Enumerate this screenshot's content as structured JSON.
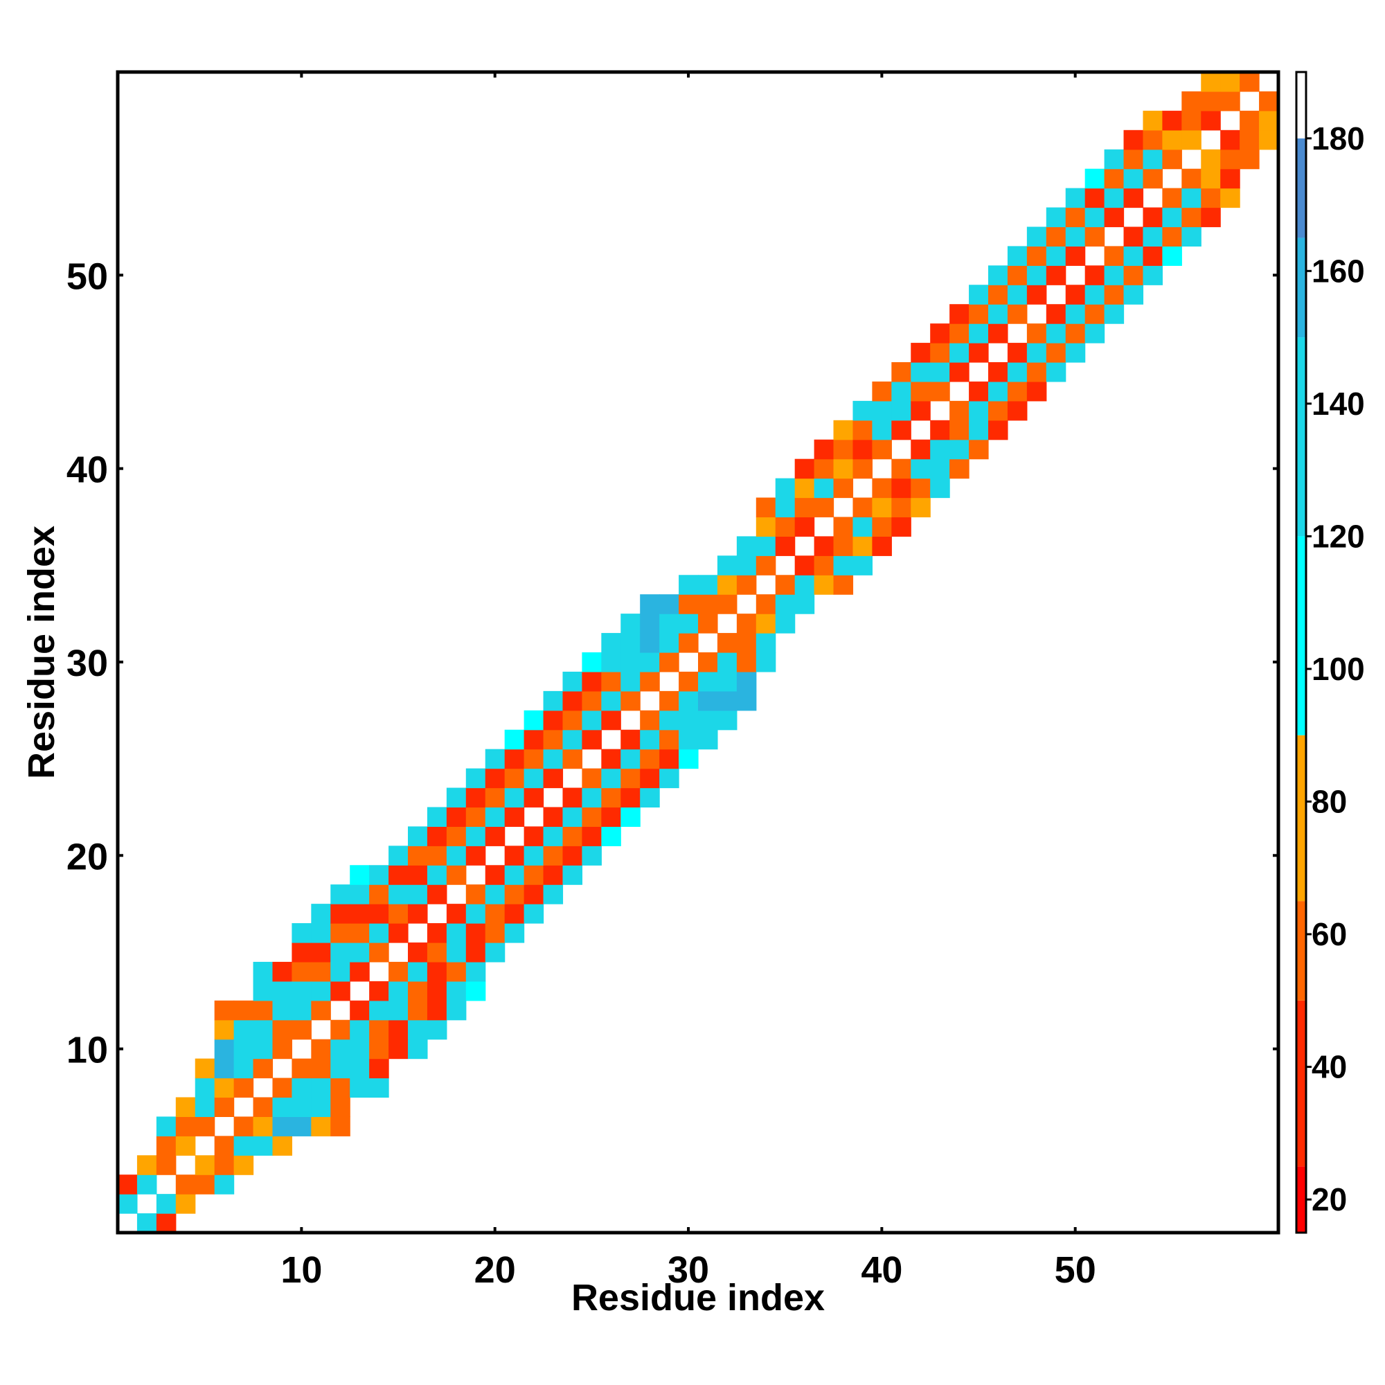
{
  "chart_data": {
    "type": "heatmap",
    "title": "",
    "xlabel": "Residue index",
    "ylabel": "Residue index",
    "x_range": [
      0.5,
      60.5
    ],
    "y_range": [
      0.5,
      60.5
    ],
    "x_ticks": [
      10,
      20,
      30,
      40,
      50
    ],
    "y_ticks": [
      10,
      20,
      30,
      40,
      50
    ],
    "grid": false,
    "legend": "colorbar-right",
    "colorbar": {
      "range": [
        15,
        190
      ],
      "ticks": [
        20,
        40,
        60,
        80,
        100,
        120,
        140,
        160,
        180
      ],
      "segments": [
        {
          "from": 15,
          "to": 25,
          "color": "#ff0000"
        },
        {
          "from": 25,
          "to": 50,
          "color": "#ff2a00"
        },
        {
          "from": 50,
          "to": 65,
          "color": "#ff6600"
        },
        {
          "from": 65,
          "to": 90,
          "color": "#ffa500"
        },
        {
          "from": 90,
          "to": 120,
          "color": "#00ffff"
        },
        {
          "from": 120,
          "to": 150,
          "color": "#1cd7e8"
        },
        {
          "from": 150,
          "to": 165,
          "color": "#2ab4e0"
        },
        {
          "from": 165,
          "to": 180,
          "color": "#4a8ad0"
        },
        {
          "from": 180,
          "to": 190,
          "color": "#ffffff"
        }
      ]
    },
    "note_values": "Cell values are inter-residue angles (degrees) estimated from color; matrix is symmetric, listed as pairs [i, j, value] with i < j.",
    "cells": [
      [
        1,
        2,
        120
      ],
      [
        1,
        3,
        40
      ],
      [
        2,
        3,
        120
      ],
      [
        2,
        4,
        80
      ],
      [
        3,
        4,
        55
      ],
      [
        3,
        5,
        55
      ],
      [
        3,
        6,
        120
      ],
      [
        4,
        5,
        70
      ],
      [
        4,
        6,
        55
      ],
      [
        4,
        7,
        80
      ],
      [
        5,
        6,
        55
      ],
      [
        5,
        7,
        120
      ],
      [
        5,
        8,
        120
      ],
      [
        5,
        9,
        80
      ],
      [
        6,
        7,
        60
      ],
      [
        6,
        8,
        80
      ],
      [
        6,
        9,
        150
      ],
      [
        6,
        10,
        150
      ],
      [
        6,
        11,
        70
      ],
      [
        6,
        12,
        60
      ],
      [
        7,
        8,
        60
      ],
      [
        7,
        9,
        140
      ],
      [
        7,
        10,
        130
      ],
      [
        7,
        11,
        130
      ],
      [
        7,
        12,
        50
      ],
      [
        8,
        9,
        60
      ],
      [
        8,
        10,
        130
      ],
      [
        8,
        11,
        130
      ],
      [
        8,
        12,
        50
      ],
      [
        8,
        13,
        120
      ],
      [
        8,
        14,
        120
      ],
      [
        9,
        10,
        60
      ],
      [
        9,
        11,
        50
      ],
      [
        9,
        12,
        120
      ],
      [
        9,
        13,
        120
      ],
      [
        9,
        14,
        40
      ],
      [
        10,
        11,
        55
      ],
      [
        10,
        12,
        140
      ],
      [
        10,
        13,
        120
      ],
      [
        10,
        14,
        55
      ],
      [
        10,
        15,
        40
      ],
      [
        10,
        16,
        120
      ],
      [
        11,
        12,
        50
      ],
      [
        11,
        13,
        120
      ],
      [
        11,
        14,
        55
      ],
      [
        11,
        15,
        40
      ],
      [
        11,
        16,
        120
      ],
      [
        11,
        17,
        120
      ],
      [
        12,
        13,
        40
      ],
      [
        12,
        14,
        130
      ],
      [
        12,
        15,
        130
      ],
      [
        12,
        16,
        55
      ],
      [
        12,
        17,
        40
      ],
      [
        12,
        18,
        120
      ],
      [
        13,
        14,
        40
      ],
      [
        13,
        15,
        130
      ],
      [
        13,
        16,
        55
      ],
      [
        13,
        17,
        40
      ],
      [
        13,
        18,
        120
      ],
      [
        13,
        19,
        100
      ],
      [
        14,
        15,
        55
      ],
      [
        14,
        16,
        130
      ],
      [
        14,
        17,
        40
      ],
      [
        14,
        18,
        55
      ],
      [
        14,
        19,
        120
      ],
      [
        15,
        16,
        40
      ],
      [
        15,
        17,
        55
      ],
      [
        15,
        18,
        120
      ],
      [
        15,
        19,
        40
      ],
      [
        15,
        20,
        120
      ],
      [
        16,
        17,
        40
      ],
      [
        16,
        18,
        130
      ],
      [
        16,
        19,
        40
      ],
      [
        16,
        20,
        55
      ],
      [
        16,
        21,
        120
      ],
      [
        17,
        18,
        40
      ],
      [
        17,
        19,
        130
      ],
      [
        17,
        20,
        55
      ],
      [
        17,
        21,
        40
      ],
      [
        17,
        22,
        120
      ],
      [
        18,
        19,
        55
      ],
      [
        18,
        20,
        130
      ],
      [
        18,
        21,
        55
      ],
      [
        18,
        22,
        40
      ],
      [
        18,
        23,
        120
      ],
      [
        19,
        20,
        40
      ],
      [
        19,
        21,
        130
      ],
      [
        19,
        22,
        55
      ],
      [
        19,
        23,
        40
      ],
      [
        19,
        24,
        120
      ],
      [
        20,
        21,
        40
      ],
      [
        20,
        22,
        130
      ],
      [
        20,
        23,
        55
      ],
      [
        20,
        24,
        40
      ],
      [
        20,
        25,
        120
      ],
      [
        21,
        22,
        40
      ],
      [
        21,
        23,
        120
      ],
      [
        21,
        24,
        55
      ],
      [
        21,
        25,
        40
      ],
      [
        21,
        26,
        100
      ],
      [
        22,
        23,
        40
      ],
      [
        22,
        24,
        130
      ],
      [
        22,
        25,
        55
      ],
      [
        22,
        26,
        40
      ],
      [
        22,
        27,
        100
      ],
      [
        23,
        24,
        40
      ],
      [
        23,
        25,
        130
      ],
      [
        23,
        26,
        55
      ],
      [
        23,
        27,
        40
      ],
      [
        23,
        28,
        120
      ],
      [
        24,
        25,
        55
      ],
      [
        24,
        26,
        130
      ],
      [
        24,
        27,
        55
      ],
      [
        24,
        28,
        40
      ],
      [
        24,
        29,
        120
      ],
      [
        25,
        26,
        40
      ],
      [
        25,
        27,
        130
      ],
      [
        25,
        28,
        55
      ],
      [
        25,
        29,
        40
      ],
      [
        25,
        30,
        100
      ],
      [
        26,
        27,
        40
      ],
      [
        26,
        28,
        130
      ],
      [
        26,
        29,
        55
      ],
      [
        26,
        30,
        130
      ],
      [
        26,
        31,
        130
      ],
      [
        27,
        28,
        55
      ],
      [
        27,
        29,
        130
      ],
      [
        27,
        30,
        120
      ],
      [
        27,
        31,
        120
      ],
      [
        27,
        32,
        140
      ],
      [
        28,
        29,
        60
      ],
      [
        28,
        30,
        130
      ],
      [
        28,
        31,
        160
      ],
      [
        28,
        32,
        150
      ],
      [
        28,
        33,
        150
      ],
      [
        29,
        30,
        60
      ],
      [
        29,
        31,
        130
      ],
      [
        29,
        32,
        120
      ],
      [
        29,
        33,
        150
      ],
      [
        30,
        31,
        50
      ],
      [
        30,
        32,
        120
      ],
      [
        30,
        33,
        60
      ],
      [
        30,
        34,
        120
      ],
      [
        31,
        32,
        55
      ],
      [
        31,
        33,
        60
      ],
      [
        31,
        34,
        120
      ],
      [
        32,
        33,
        55
      ],
      [
        32,
        34,
        70
      ],
      [
        32,
        35,
        120
      ],
      [
        33,
        34,
        55
      ],
      [
        33,
        35,
        130
      ],
      [
        33,
        36,
        120
      ],
      [
        34,
        35,
        55
      ],
      [
        34,
        36,
        130
      ],
      [
        34,
        37,
        70
      ],
      [
        34,
        38,
        55
      ],
      [
        35,
        36,
        40
      ],
      [
        35,
        37,
        55
      ],
      [
        35,
        38,
        120
      ],
      [
        35,
        39,
        130
      ],
      [
        36,
        37,
        40
      ],
      [
        36,
        38,
        55
      ],
      [
        36,
        39,
        70
      ],
      [
        36,
        40,
        40
      ],
      [
        37,
        38,
        55
      ],
      [
        37,
        39,
        130
      ],
      [
        37,
        40,
        55
      ],
      [
        37,
        41,
        40
      ],
      [
        38,
        39,
        60
      ],
      [
        38,
        40,
        70
      ],
      [
        38,
        41,
        60
      ],
      [
        38,
        42,
        70
      ],
      [
        39,
        40,
        60
      ],
      [
        39,
        41,
        40
      ],
      [
        39,
        42,
        55
      ],
      [
        39,
        43,
        130
      ],
      [
        40,
        41,
        55
      ],
      [
        40,
        42,
        130
      ],
      [
        40,
        43,
        130
      ],
      [
        40,
        44,
        55
      ],
      [
        41,
        42,
        40
      ],
      [
        41,
        43,
        130
      ],
      [
        41,
        44,
        130
      ],
      [
        41,
        45,
        55
      ],
      [
        42,
        43,
        40
      ],
      [
        42,
        44,
        55
      ],
      [
        42,
        45,
        130
      ],
      [
        42,
        46,
        40
      ],
      [
        43,
        44,
        55
      ],
      [
        43,
        45,
        130
      ],
      [
        43,
        46,
        55
      ],
      [
        43,
        47,
        40
      ],
      [
        44,
        45,
        40
      ],
      [
        44,
        46,
        130
      ],
      [
        44,
        47,
        55
      ],
      [
        44,
        48,
        40
      ],
      [
        45,
        46,
        40
      ],
      [
        45,
        47,
        130
      ],
      [
        45,
        48,
        55
      ],
      [
        45,
        49,
        120
      ],
      [
        46,
        47,
        40
      ],
      [
        46,
        48,
        130
      ],
      [
        46,
        49,
        55
      ],
      [
        46,
        50,
        120
      ],
      [
        47,
        48,
        55
      ],
      [
        47,
        49,
        130
      ],
      [
        47,
        50,
        55
      ],
      [
        47,
        51,
        120
      ],
      [
        48,
        49,
        40
      ],
      [
        48,
        50,
        130
      ],
      [
        48,
        51,
        55
      ],
      [
        48,
        52,
        120
      ],
      [
        49,
        50,
        40
      ],
      [
        49,
        51,
        130
      ],
      [
        49,
        52,
        55
      ],
      [
        49,
        53,
        120
      ],
      [
        50,
        51,
        40
      ],
      [
        50,
        52,
        130
      ],
      [
        50,
        53,
        55
      ],
      [
        50,
        54,
        120
      ],
      [
        51,
        52,
        55
      ],
      [
        51,
        53,
        130
      ],
      [
        51,
        54,
        40
      ],
      [
        51,
        55,
        100
      ],
      [
        52,
        53,
        40
      ],
      [
        52,
        54,
        130
      ],
      [
        52,
        55,
        55
      ],
      [
        52,
        56,
        120
      ],
      [
        53,
        54,
        40
      ],
      [
        53,
        55,
        120
      ],
      [
        53,
        56,
        60
      ],
      [
        53,
        57,
        40
      ],
      [
        54,
        55,
        55
      ],
      [
        54,
        56,
        130
      ],
      [
        54,
        57,
        60
      ],
      [
        54,
        58,
        80
      ],
      [
        55,
        56,
        55
      ],
      [
        55,
        57,
        80
      ],
      [
        55,
        58,
        40
      ],
      [
        56,
        57,
        80
      ],
      [
        56,
        58,
        60
      ],
      [
        56,
        59,
        55
      ],
      [
        57,
        58,
        40
      ],
      [
        57,
        59,
        60
      ],
      [
        57,
        60,
        80
      ],
      [
        58,
        59,
        55
      ],
      [
        58,
        60,
        70
      ],
      [
        59,
        60,
        55
      ]
    ]
  }
}
